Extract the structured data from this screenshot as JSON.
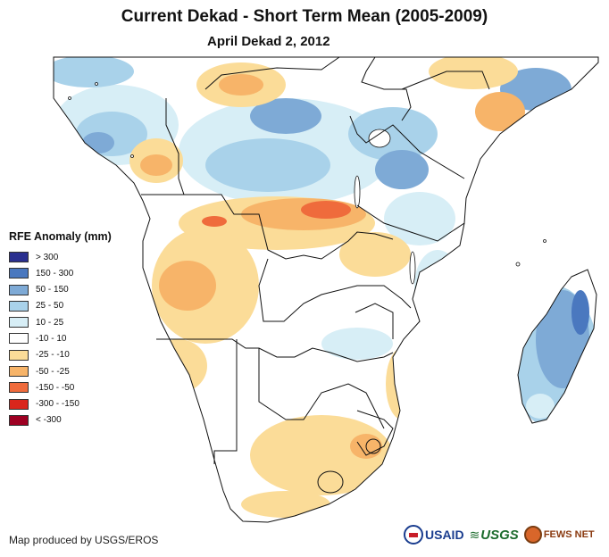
{
  "title": "Current Dekad - Short Term Mean (2005-2009)",
  "subtitle": "April Dekad 2, 2012",
  "legend": {
    "title": "RFE Anomaly (mm)",
    "items": [
      {
        "label": "> 300",
        "color": "#2a2f8f"
      },
      {
        "label": "150 - 300",
        "color": "#4a78bf"
      },
      {
        "label": "50 - 150",
        "color": "#7eaad6"
      },
      {
        "label": "25 - 50",
        "color": "#a9d2ea"
      },
      {
        "label": "10 - 25",
        "color": "#d7eef6"
      },
      {
        "label": "-10 - 10",
        "color": "#ffffff"
      },
      {
        "label": "-25 - -10",
        "color": "#fbdc98"
      },
      {
        "label": "-50 - -25",
        "color": "#f7b469"
      },
      {
        "label": "-150 - -50",
        "color": "#ef6b3c"
      },
      {
        "label": "-300 - -150",
        "color": "#d9261c"
      },
      {
        "label": "< -300",
        "color": "#9e0022"
      }
    ]
  },
  "credit": "Map produced by USGS/EROS",
  "logos": {
    "usaid": "USAID",
    "usgs": "USGS",
    "fews": "FEWS NET"
  },
  "colors": {
    "border": "#111111",
    "coast": "#111111",
    "ocean": "#ffffff"
  }
}
